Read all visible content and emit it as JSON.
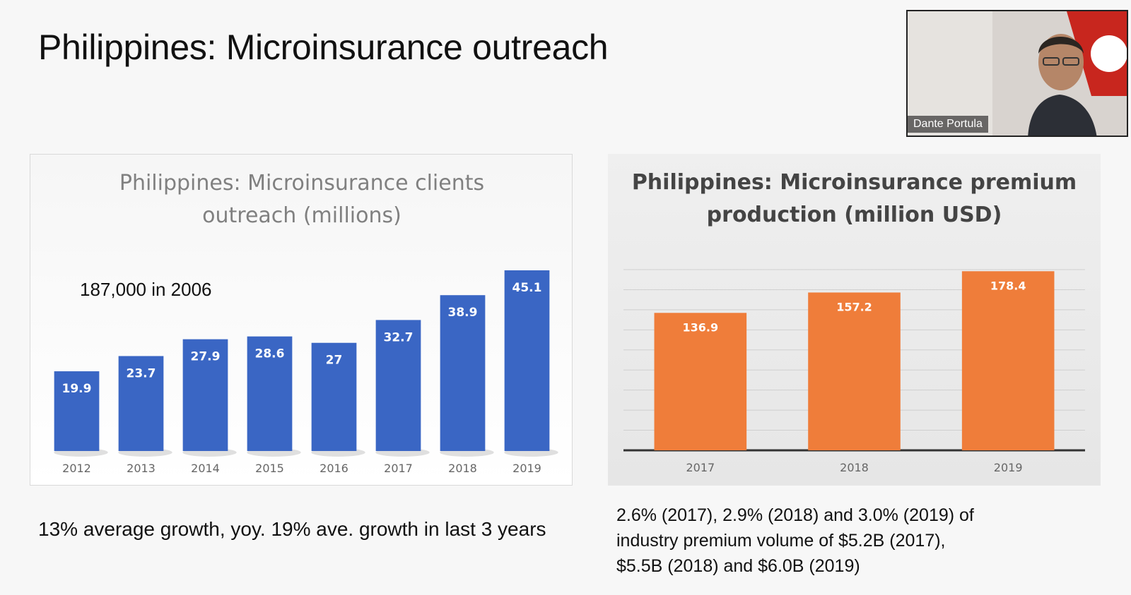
{
  "slide": {
    "title": "Philippines: Microinsurance outreach",
    "caption_left": "13% average growth, yoy. 19% ave. growth in last 3 years",
    "caption_right_lines": [
      "2.6% (2017), 2.9% (2018) and 3.0% (2019) of",
      "industry premium volume of $5.2B (2017),",
      "$5.5B (2018) and $6.0B (2019)"
    ]
  },
  "video": {
    "participant_name": "Dante Portula"
  },
  "chart_data": [
    {
      "type": "bar",
      "title_lines": [
        "Philippines: Microinsurance clients",
        "outreach (millions)"
      ],
      "annotation": "187,000 in 2006",
      "categories": [
        "2012",
        "2013",
        "2014",
        "2015",
        "2016",
        "2017",
        "2018",
        "2019"
      ],
      "values": [
        19.9,
        23.7,
        27.9,
        28.6,
        27,
        32.7,
        38.9,
        45.1
      ],
      "value_labels": [
        "19.9",
        "23.7",
        "27.9",
        "28.6",
        "27",
        "32.7",
        "38.9",
        "45.1"
      ],
      "ylim": [
        0,
        45.1
      ],
      "grid": false,
      "color": "#3a66c4"
    },
    {
      "type": "bar",
      "title_lines": [
        "Philippines: Microinsurance premium",
        "production (million USD)"
      ],
      "categories": [
        "2017",
        "2018",
        "2019"
      ],
      "values": [
        136.9,
        157.2,
        178.4
      ],
      "value_labels": [
        "136.9",
        "157.2",
        "178.4"
      ],
      "ylim": [
        0,
        180
      ],
      "grid": true,
      "color": "#ef7d3a"
    }
  ]
}
